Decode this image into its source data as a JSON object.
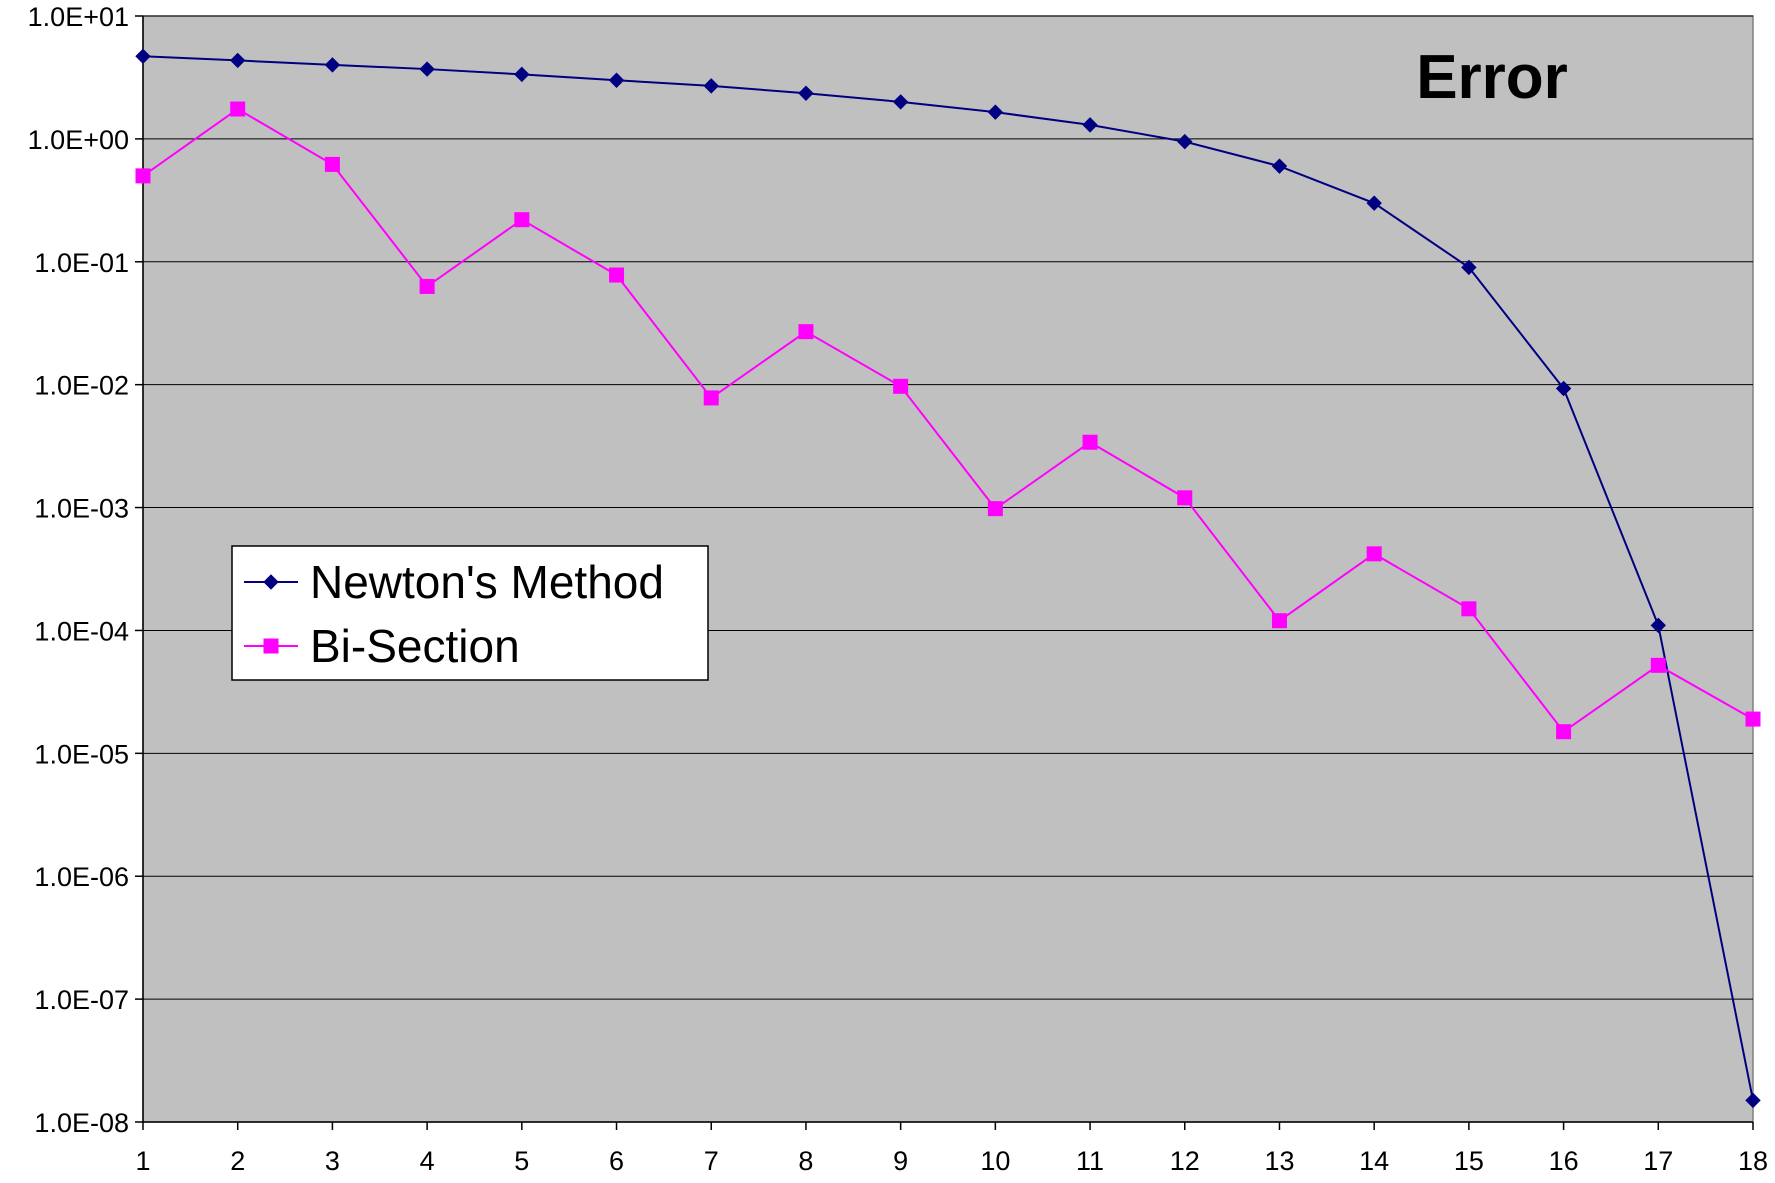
{
  "chart_data": {
    "type": "line",
    "title": "Error",
    "xlabel": "",
    "ylabel": "",
    "y_scale": "log",
    "ylim": [
      1e-08,
      10
    ],
    "xlim": [
      1,
      18
    ],
    "x": [
      1,
      2,
      3,
      4,
      5,
      6,
      7,
      8,
      9,
      10,
      11,
      12,
      13,
      14,
      15,
      16,
      17,
      18
    ],
    "x_tick_labels": [
      "1",
      "2",
      "3",
      "4",
      "5",
      "6",
      "7",
      "8",
      "9",
      "10",
      "11",
      "12",
      "13",
      "14",
      "15",
      "16",
      "17",
      "18"
    ],
    "y_tick_labels": [
      "1.0E+01",
      "1.0E+00",
      "1.0E-01",
      "1.0E-02",
      "1.0E-03",
      "1.0E-04",
      "1.0E-05",
      "1.0E-06",
      "1.0E-07",
      "1.0E-08"
    ],
    "y_tick_values": [
      10,
      1,
      0.1,
      0.01,
      0.001,
      0.0001,
      1e-05,
      1e-06,
      1e-07,
      1e-08
    ],
    "grid": "horizontal",
    "plot_background": "#c0c0c0",
    "legend_position": "left-middle",
    "series": [
      {
        "name": "Newton's Method",
        "marker": "diamond",
        "color": "#000080",
        "values": [
          4.7,
          4.35,
          4.0,
          3.7,
          3.35,
          3.0,
          2.7,
          2.35,
          2.0,
          1.65,
          1.3,
          0.95,
          0.6,
          0.3,
          0.09,
          0.0093,
          0.00011,
          1.5e-08
        ]
      },
      {
        "name": "Bi-Section",
        "marker": "square",
        "color": "#ff00ff",
        "values": [
          0.5,
          1.75,
          0.62,
          0.063,
          0.22,
          0.078,
          0.0078,
          0.027,
          0.0097,
          0.00098,
          0.0034,
          0.0012,
          0.00012,
          0.00042,
          0.00015,
          1.5e-05,
          5.2e-05,
          1.9e-05
        ]
      }
    ]
  }
}
